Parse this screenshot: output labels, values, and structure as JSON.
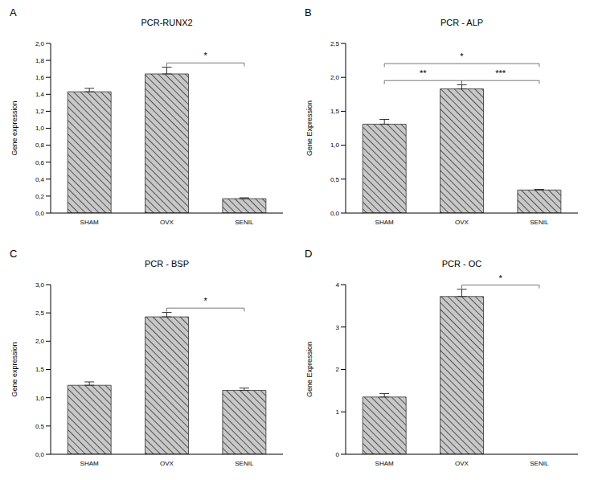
{
  "chart_data": [
    {
      "type": "bar",
      "panel": "A",
      "title": "PCR-RUNX2",
      "y_label": "Gene expression",
      "categories": [
        "SHAM",
        "OVX",
        "SENIL"
      ],
      "values": [
        1.43,
        1.64,
        0.17
      ],
      "errors": [
        0.04,
        0.08,
        0.01
      ],
      "color": "#c8c8c8",
      "ylim": [
        0,
        2.0
      ],
      "yticks": [
        {
          "value": 0,
          "label": "0,0"
        },
        {
          "value": 0.2,
          "label": "0,2"
        },
        {
          "value": 0.4,
          "label": "0,4"
        },
        {
          "value": 0.6,
          "label": "0,6"
        },
        {
          "value": 0.8,
          "label": "0,8"
        },
        {
          "value": 1.0,
          "label": "1,0"
        },
        {
          "value": 1.2,
          "label": "1,2"
        },
        {
          "value": 1.4,
          "label": "1,4"
        },
        {
          "value": 1.6,
          "label": "1,6"
        },
        {
          "value": 1.8,
          "label": "1,8"
        },
        {
          "value": 2.0,
          "label": "2,0"
        }
      ],
      "annotations": [
        {
          "from": "OVX",
          "to": "SENIL",
          "text": "*"
        }
      ]
    },
    {
      "type": "bar",
      "panel": "B",
      "title": "PCR - ALP",
      "y_label": "Gene Expression",
      "categories": [
        "SHAM",
        "OVX",
        "SENIL"
      ],
      "values": [
        1.31,
        1.83,
        0.34
      ],
      "errors": [
        0.07,
        0.06,
        0.01
      ],
      "color": "#c8c8c8",
      "ylim": [
        0,
        2.5
      ],
      "yticks": [
        {
          "value": 0,
          "label": "0,0"
        },
        {
          "value": 0.5,
          "label": "0,5"
        },
        {
          "value": 1.0,
          "label": "1,0"
        },
        {
          "value": 1.5,
          "label": "1,5"
        },
        {
          "value": 2.0,
          "label": "2,0"
        },
        {
          "value": 2.5,
          "label": "2,5"
        }
      ],
      "annotations": [
        {
          "from": "SHAM",
          "to": "OVX",
          "text": "**"
        },
        {
          "from": "OVX",
          "to": "SENIL",
          "text": "***"
        },
        {
          "from": "SHAM",
          "to": "SENIL",
          "text": "*"
        }
      ]
    },
    {
      "type": "bar",
      "panel": "C",
      "title": "PCR - BSP",
      "y_label": "Gene expression",
      "categories": [
        "SHAM",
        "OVX",
        "SENIL"
      ],
      "values": [
        1.22,
        2.43,
        1.13
      ],
      "errors": [
        0.06,
        0.08,
        0.04
      ],
      "color": "#c8c8c8",
      "ylim": [
        0,
        3.0
      ],
      "yticks": [
        {
          "value": 0,
          "label": "0,0"
        },
        {
          "value": 0.5,
          "label": "0,5"
        },
        {
          "value": 1.0,
          "label": "1,0"
        },
        {
          "value": 1.5,
          "label": "1,5"
        },
        {
          "value": 2.0,
          "label": "2,0"
        },
        {
          "value": 2.5,
          "label": "2,5"
        },
        {
          "value": 3.0,
          "label": "3,0"
        }
      ],
      "annotations": [
        {
          "from": "OVX",
          "to": "SENIL",
          "text": "*"
        }
      ]
    },
    {
      "type": "bar",
      "panel": "D",
      "title": "PCR - OC",
      "y_label": "Gene Expression",
      "categories": [
        "SHAM",
        "OVX",
        "SENIL"
      ],
      "values": [
        1.35,
        3.72,
        0
      ],
      "errors": [
        0.08,
        0.17,
        0
      ],
      "color": "#c8c8c8",
      "ylim": [
        0,
        4
      ],
      "yticks": [
        0,
        1,
        2,
        3,
        4
      ],
      "annotations": [
        {
          "from": "OVX",
          "to": "SENIL",
          "text": "*"
        }
      ]
    }
  ]
}
